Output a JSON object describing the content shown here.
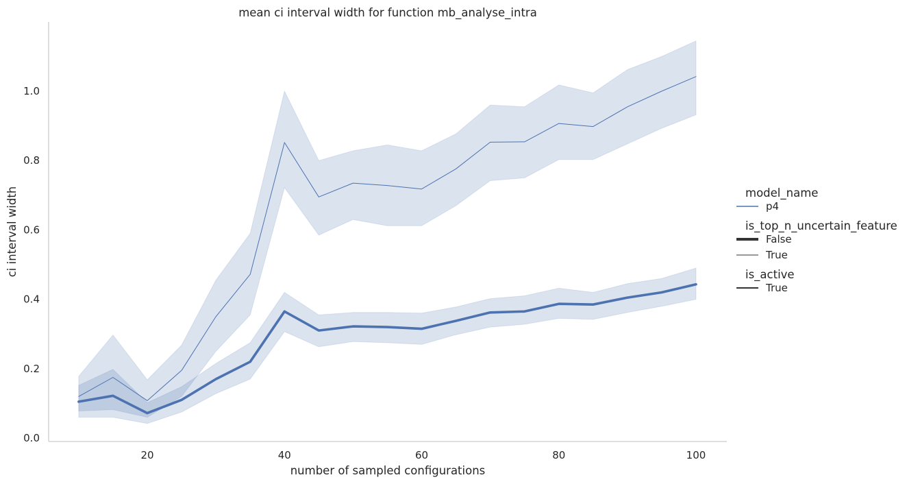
{
  "chart_data": {
    "type": "line",
    "title": "mean ci interval width for function mb_analyse_intra",
    "xlabel": "number of sampled configurations",
    "ylabel": "ci interval width",
    "xlim": [
      5,
      105
    ],
    "ylim": [
      -0.01,
      1.2
    ],
    "xticks": [
      20,
      40,
      60,
      80,
      100
    ],
    "yticks": [
      0.0,
      0.2,
      0.4,
      0.6,
      0.8,
      1.0
    ],
    "grid": false,
    "legend_placement": "right",
    "colors": {
      "series": "#4c72b0",
      "band": "#4c72b0",
      "axis": "#cccccc",
      "legend_black": "#333333"
    },
    "x": [
      10,
      15,
      20,
      25,
      30,
      35,
      40,
      45,
      50,
      55,
      60,
      65,
      70,
      75,
      80,
      85,
      90,
      95,
      100
    ],
    "series": [
      {
        "is_top_n_uncertain_feature": "True",
        "linewidth": "thin",
        "values": [
          0.12,
          0.175,
          0.108,
          0.195,
          0.35,
          0.472,
          0.852,
          0.695,
          0.735,
          0.728,
          0.718,
          0.776,
          0.853,
          0.854,
          0.907,
          0.898,
          0.955,
          1.0,
          1.042
        ],
        "ci_low": [
          0.078,
          0.082,
          0.06,
          0.12,
          0.25,
          0.355,
          0.722,
          0.585,
          0.63,
          0.612,
          0.612,
          0.67,
          0.742,
          0.75,
          0.803,
          0.803,
          0.848,
          0.893,
          0.932
        ],
        "ci_high": [
          0.178,
          0.297,
          0.168,
          0.268,
          0.455,
          0.59,
          1.0,
          0.8,
          0.828,
          0.845,
          0.828,
          0.877,
          0.96,
          0.955,
          1.018,
          0.995,
          1.062,
          1.1,
          1.145
        ]
      },
      {
        "is_top_n_uncertain_feature": "False",
        "linewidth": "thick",
        "values": [
          0.105,
          0.122,
          0.072,
          0.11,
          0.17,
          0.22,
          0.365,
          0.31,
          0.322,
          0.32,
          0.315,
          0.338,
          0.362,
          0.365,
          0.387,
          0.385,
          0.405,
          0.42,
          0.443
        ],
        "ci_low": [
          0.06,
          0.06,
          0.042,
          0.075,
          0.128,
          0.17,
          0.307,
          0.263,
          0.278,
          0.275,
          0.27,
          0.298,
          0.32,
          0.328,
          0.345,
          0.342,
          0.362,
          0.38,
          0.4
        ],
        "ci_high": [
          0.152,
          0.198,
          0.102,
          0.148,
          0.215,
          0.275,
          0.42,
          0.355,
          0.362,
          0.362,
          0.36,
          0.378,
          0.402,
          0.41,
          0.432,
          0.42,
          0.445,
          0.46,
          0.49
        ]
      }
    ],
    "legend": {
      "groups": [
        {
          "title": "model_name",
          "entries": [
            {
              "label": "p4",
              "style": "hue"
            }
          ]
        },
        {
          "title": "is_top_n_uncertain_feature",
          "entries": [
            {
              "label": "False",
              "style": "thick"
            },
            {
              "label": "True",
              "style": "thin"
            }
          ]
        },
        {
          "title": "is_active",
          "entries": [
            {
              "label": "True",
              "style": "solid"
            }
          ]
        }
      ]
    }
  }
}
